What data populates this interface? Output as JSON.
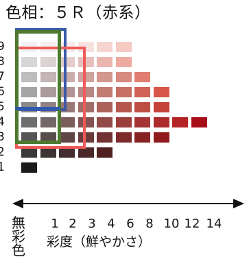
{
  "title": "色相：５Ｒ（赤系）",
  "value_labels": [
    "9",
    "8",
    "7",
    "6",
    "5",
    "4",
    "3",
    "2",
    "1"
  ],
  "chroma_labels": [
    "1",
    "2",
    "3",
    "4",
    "6",
    "8",
    "10",
    "12",
    "14"
  ],
  "achromatic_label": "無彩色",
  "axis_label": "彩度（鮮やかさ）",
  "colors": {
    "outline_blue": "#3c5aa8",
    "outline_red": "#f05a5a",
    "outline_green": "#4d7a2e",
    "highlight_line": "#2f58b0"
  },
  "swatches": [
    {
      "value": 9,
      "colors": [
        "#f2f2f2",
        "#f5eeee",
        "#f8ebe9",
        "#f7e1de",
        "#f6d5d1",
        "#f6cac3"
      ]
    },
    {
      "value": 8,
      "colors": [
        "#d6d6d6",
        "#ddd2d2",
        "#e4ccca",
        "#e6c1bc",
        "#ebb6af",
        "#eeaaa1"
      ]
    },
    {
      "value": 7,
      "colors": [
        "#bdbdbd",
        "#c3b5b5",
        "#c9aeab",
        "#cda39e",
        "#d2978e",
        "#d88a80",
        "#e07d70"
      ]
    },
    {
      "value": 6,
      "colors": [
        "#a4a4a4",
        "#aa9c9c",
        "#b19493",
        "#b98884",
        "#c17c74",
        "#c86f63",
        "#d06257",
        "#d8554a"
      ]
    },
    {
      "value": 5,
      "colors": [
        "#8a8a8a",
        "#908282",
        "#987977",
        "#a26d69",
        "#ab625b",
        "#b5574d",
        "#be4d43",
        "#c54239"
      ]
    },
    {
      "value": 4,
      "colors": [
        "#6e6e6e",
        "#736767",
        "#7b5e5c",
        "#865352",
        "#914a48",
        "#9c3e3c",
        "#a53434",
        "#ae2b2d",
        "#b42326",
        "#a80e1a"
      ]
    },
    {
      "value": 3,
      "colors": [
        "#555555",
        "#584d4d",
        "#5f4545",
        "#693b3b",
        "#733232",
        "#7d2a2a",
        "#872222",
        "#901b1d"
      ]
    },
    {
      "value": 2,
      "colors": [
        "#3a3a3a",
        "#3d3434",
        "#432f2f",
        "#4a2828",
        "#512121"
      ]
    },
    {
      "value": 1,
      "colors": [
        "#1b1b1b"
      ]
    }
  ]
}
